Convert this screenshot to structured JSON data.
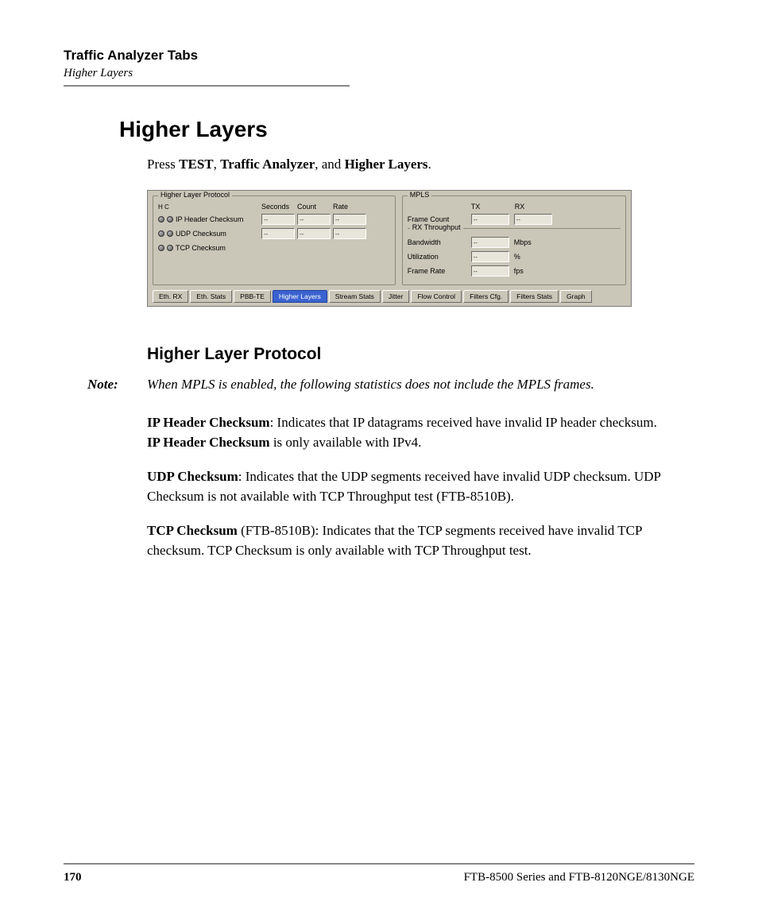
{
  "header": {
    "title": "Traffic Analyzer Tabs",
    "subtitle": "Higher Layers"
  },
  "h1": "Higher Layers",
  "instruction": {
    "prefix": "Press ",
    "b1": "TEST",
    "sep1": ", ",
    "b2": "Traffic Analyzer",
    "sep2": ", and ",
    "b3": "Higher Layers",
    "suffix": "."
  },
  "screenshot": {
    "hlp": {
      "legend": "Higher Layer Protocol",
      "hc": "H   C",
      "cols": [
        "Seconds",
        "Count",
        "Rate"
      ],
      "rows": [
        {
          "name": "IP Header Checksum",
          "vals": [
            "--",
            "--",
            "--"
          ]
        },
        {
          "name": "UDP Checksum",
          "vals": [
            "--",
            "--",
            "--"
          ]
        },
        {
          "name": "TCP Checksum",
          "vals": [
            "",
            "",
            ""
          ]
        }
      ]
    },
    "mpls": {
      "legend": "MPLS",
      "cols": [
        "TX",
        "RX"
      ],
      "frame_count": {
        "label": "Frame Count",
        "tx": "--",
        "rx": "--"
      },
      "rx_throughput": "RX Throughput",
      "rows": [
        {
          "name": "Bandwidth",
          "val": "--",
          "unit": "Mbps"
        },
        {
          "name": "Utilization",
          "val": "--",
          "unit": "%"
        },
        {
          "name": "Frame Rate",
          "val": "--",
          "unit": "fps"
        }
      ]
    },
    "tabs": [
      "Eth. RX",
      "Eth. Stats",
      "PBB-TE",
      "Higher Layers",
      "Stream Stats",
      "Jitter",
      "Flow Control",
      "Filters Cfg.",
      "Filters Stats",
      "Graph"
    ],
    "active_tab_index": 3
  },
  "h2": "Higher Layer Protocol",
  "note": {
    "label": "Note:",
    "text": "When MPLS is enabled, the following statistics does not include the MPLS frames."
  },
  "p1": {
    "b1": "IP Header Checksum",
    "t1": ": Indicates that IP datagrams received have invalid IP header checksum. ",
    "b2": "IP Header Checksum",
    "t2": " is only available with IPv4."
  },
  "p2": {
    "b1": "UDP Checksum",
    "t1": ": Indicates that the UDP segments received have invalid UDP checksum. UDP Checksum is not available with TCP Throughput test (FTB-8510B)."
  },
  "p3": {
    "b1": "TCP Checksum",
    "t1": " (FTB-8510B): Indicates that the TCP segments received have invalid TCP checksum. TCP Checksum is only available with TCP Throughput test."
  },
  "footer": {
    "page": "170",
    "doc": "FTB-8500 Series and FTB-8120NGE/8130NGE"
  }
}
